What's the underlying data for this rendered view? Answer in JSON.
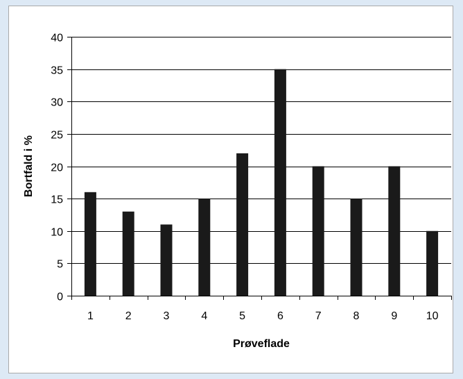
{
  "chart_data": {
    "type": "bar",
    "title": "",
    "xlabel": "Prøveflade",
    "ylabel": "Bortfald i %",
    "categories": [
      "1",
      "2",
      "3",
      "4",
      "5",
      "6",
      "7",
      "8",
      "9",
      "10"
    ],
    "values": [
      16,
      13,
      11,
      15,
      22,
      35,
      20,
      15,
      20,
      10
    ],
    "ylim": [
      0,
      40
    ],
    "yticks": [
      0,
      5,
      10,
      15,
      20,
      25,
      30,
      35,
      40
    ],
    "grid": true,
    "legend": "none",
    "bar_color": "#1a1a1a",
    "background_color": "#dde9f5"
  }
}
